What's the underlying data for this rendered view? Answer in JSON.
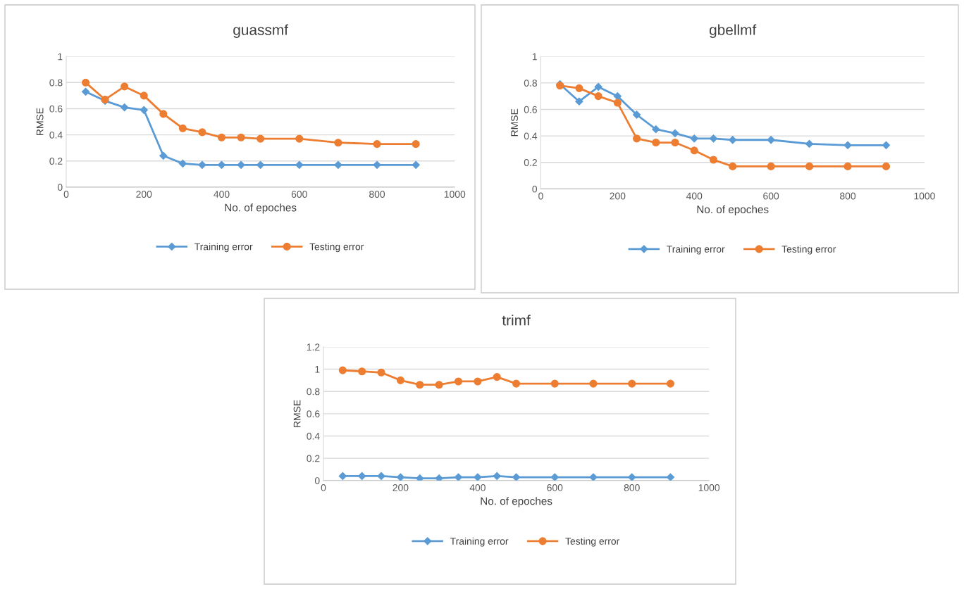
{
  "chart_data": [
    {
      "type": "line",
      "title": "guassmf",
      "xlabel": "No. of epoches",
      "ylabel": "RMSE",
      "x": [
        50,
        100,
        150,
        200,
        250,
        300,
        350,
        400,
        450,
        500,
        600,
        700,
        800,
        900
      ],
      "xlim": [
        0,
        1000
      ],
      "xticks": [
        0,
        200,
        400,
        600,
        800,
        1000
      ],
      "ylim": [
        0,
        1
      ],
      "yticks": [
        0,
        0.2,
        0.4,
        0.6,
        0.8,
        1
      ],
      "grid": "y",
      "legend": "bottom",
      "series": [
        {
          "name": "Training error",
          "color": "#5b9bd5",
          "marker": "diamond",
          "values": [
            0.73,
            0.66,
            0.61,
            0.59,
            0.24,
            0.18,
            0.17,
            0.17,
            0.17,
            0.17,
            0.17,
            0.17,
            0.17,
            0.17
          ]
        },
        {
          "name": "Testing error",
          "color": "#ed7d31",
          "marker": "circle",
          "values": [
            0.8,
            0.67,
            0.77,
            0.7,
            0.56,
            0.45,
            0.42,
            0.38,
            0.38,
            0.37,
            0.37,
            0.34,
            0.33,
            0.33
          ]
        }
      ]
    },
    {
      "type": "line",
      "title": "gbellmf",
      "xlabel": "No. of epoches",
      "ylabel": "RMSE",
      "x": [
        50,
        100,
        150,
        200,
        250,
        300,
        350,
        400,
        450,
        500,
        600,
        700,
        800,
        900
      ],
      "xlim": [
        0,
        1000
      ],
      "xticks": [
        0,
        200,
        400,
        600,
        800,
        1000
      ],
      "ylim": [
        0,
        1
      ],
      "yticks": [
        0,
        0.2,
        0.4,
        0.6,
        0.8,
        1
      ],
      "grid": "y",
      "legend": "bottom",
      "series": [
        {
          "name": "Training error",
          "color": "#5b9bd5",
          "marker": "diamond",
          "values": [
            0.79,
            0.66,
            0.77,
            0.7,
            0.56,
            0.45,
            0.42,
            0.38,
            0.38,
            0.37,
            0.37,
            0.34,
            0.33,
            0.33
          ]
        },
        {
          "name": "Testing error",
          "color": "#ed7d31",
          "marker": "circle",
          "values": [
            0.78,
            0.76,
            0.7,
            0.65,
            0.38,
            0.35,
            0.35,
            0.29,
            0.22,
            0.17,
            0.17,
            0.17,
            0.17,
            0.17
          ]
        }
      ]
    },
    {
      "type": "line",
      "title": "trimf",
      "xlabel": "No. of epoches",
      "ylabel": "RMSE",
      "x": [
        50,
        100,
        150,
        200,
        250,
        300,
        350,
        400,
        450,
        500,
        600,
        700,
        800,
        900
      ],
      "xlim": [
        0,
        1000
      ],
      "xticks": [
        0,
        200,
        400,
        600,
        800,
        1000
      ],
      "ylim": [
        0,
        1.2
      ],
      "yticks": [
        0,
        0.2,
        0.4,
        0.6,
        0.8,
        1,
        1.2
      ],
      "grid": "y",
      "legend": "bottom",
      "series": [
        {
          "name": "Training error",
          "color": "#5b9bd5",
          "marker": "diamond",
          "values": [
            0.04,
            0.04,
            0.04,
            0.03,
            0.02,
            0.02,
            0.03,
            0.03,
            0.04,
            0.03,
            0.03,
            0.03,
            0.03,
            0.03
          ]
        },
        {
          "name": "Testing error",
          "color": "#ed7d31",
          "marker": "circle",
          "values": [
            0.99,
            0.98,
            0.97,
            0.9,
            0.86,
            0.86,
            0.89,
            0.89,
            0.93,
            0.87,
            0.87,
            0.87,
            0.87,
            0.87
          ]
        }
      ]
    }
  ]
}
